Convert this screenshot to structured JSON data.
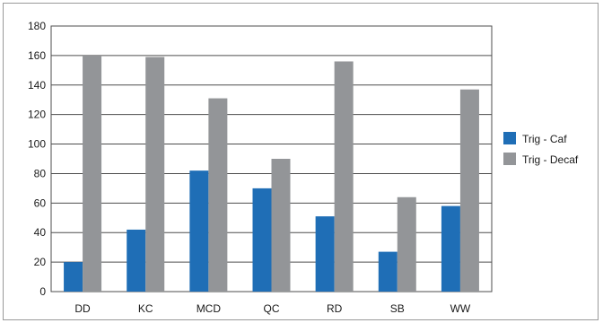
{
  "chart_data": {
    "type": "bar",
    "title": "",
    "xlabel": "",
    "ylabel": "",
    "categories": [
      "DD",
      "KC",
      "MCD",
      "QC",
      "RD",
      "SB",
      "WW"
    ],
    "series": [
      {
        "name": "Trig - Caf",
        "color": "#1f6eb6",
        "values": [
          20,
          42,
          82,
          70,
          51,
          27,
          58
        ]
      },
      {
        "name": "Trig - Decaf",
        "color": "#939598",
        "values": [
          160,
          159,
          131,
          90,
          156,
          64,
          137
        ]
      }
    ],
    "ylim": [
      0,
      180
    ],
    "yticks": [
      0,
      20,
      40,
      60,
      80,
      100,
      120,
      140,
      160,
      180
    ],
    "grid": true,
    "legend": "right"
  }
}
